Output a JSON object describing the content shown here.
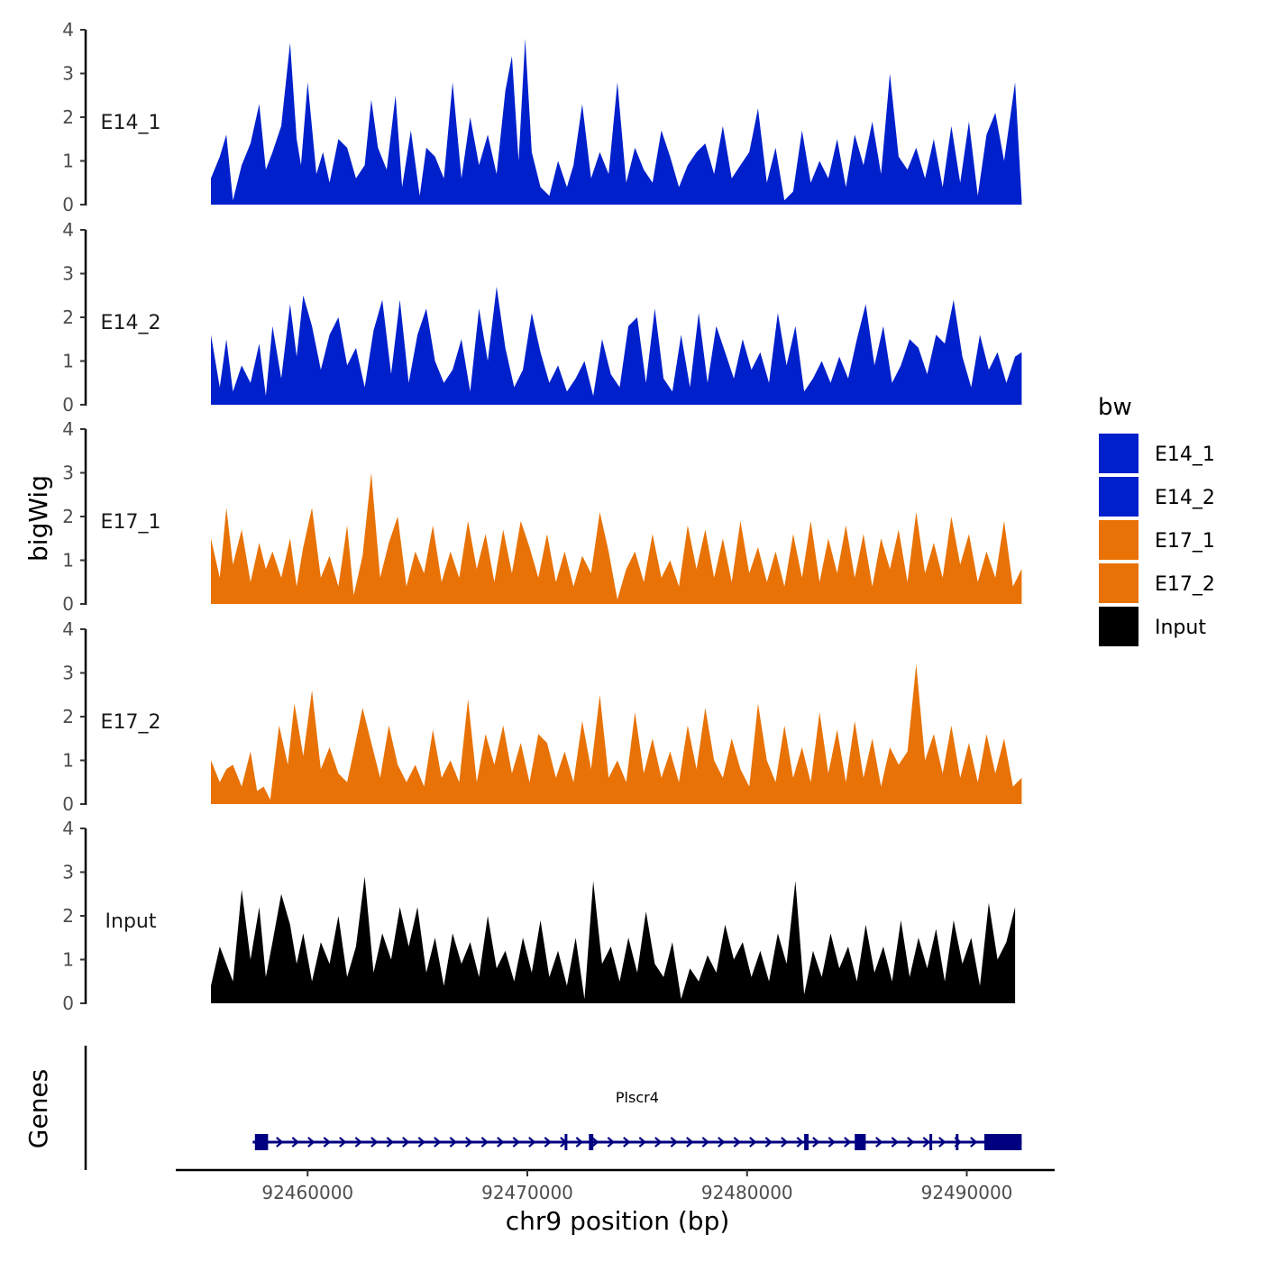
{
  "chart_data": {
    "type": "area",
    "panel_ylabel": "bigWig",
    "genes_label": "Genes",
    "xlabel": "chr9 position (bp)",
    "xlim": [
      92454000,
      92494000
    ],
    "x_ticks": [
      92460000,
      92470000,
      92480000,
      92490000
    ],
    "x_tick_labels": [
      "92460000",
      "92470000",
      "92480000",
      "92490000"
    ],
    "ylim": [
      0,
      4
    ],
    "y_ticks": [
      0,
      1,
      2,
      3,
      4
    ],
    "y_tick_labels": [
      "0",
      "1",
      "2",
      "3",
      "4"
    ],
    "legend": {
      "title": "bw",
      "entries": [
        {
          "label": "E14_1",
          "color": "#0020CC"
        },
        {
          "label": "E14_2",
          "color": "#0020CC"
        },
        {
          "label": "E17_1",
          "color": "#E87205"
        },
        {
          "label": "E17_2",
          "color": "#E87205"
        },
        {
          "label": "Input",
          "color": "#000000"
        }
      ]
    },
    "series": [
      {
        "name": "E14_1",
        "color": "#0020CC",
        "x": [
          92455600,
          92456000,
          92456300,
          92456600,
          92457000,
          92457400,
          92457800,
          92458100,
          92458400,
          92458800,
          92459200,
          92459500,
          92459700,
          92460000,
          92460400,
          92460700,
          92461000,
          92461400,
          92461800,
          92462200,
          92462600,
          92462900,
          92463200,
          92463600,
          92464000,
          92464300,
          92464700,
          92465100,
          92465400,
          92465800,
          92466200,
          92466600,
          92467000,
          92467400,
          92467800,
          92468200,
          92468600,
          92469000,
          92469300,
          92469600,
          92469900,
          92470200,
          92470600,
          92471000,
          92471400,
          92471800,
          92472100,
          92472500,
          92472900,
          92473300,
          92473700,
          92474100,
          92474500,
          92474900,
          92475300,
          92475700,
          92476100,
          92476500,
          92476900,
          92477300,
          92477700,
          92478100,
          92478500,
          92478900,
          92479300,
          92479700,
          92480100,
          92480500,
          92480900,
          92481300,
          92481700,
          92482100,
          92482500,
          92482900,
          92483300,
          92483700,
          92484100,
          92484500,
          92484900,
          92485300,
          92485700,
          92486100,
          92486500,
          92486900,
          92487300,
          92487700,
          92488100,
          92488500,
          92488900,
          92489300,
          92489700,
          92490100,
          92490500,
          92490900,
          92491300,
          92491700,
          92492200,
          92492500
        ],
        "values": [
          0.6,
          1.1,
          1.6,
          0.1,
          0.9,
          1.4,
          2.3,
          0.8,
          1.2,
          1.8,
          3.7,
          1.5,
          0.9,
          2.8,
          0.7,
          1.2,
          0.5,
          1.5,
          1.3,
          0.6,
          0.9,
          2.4,
          1.3,
          0.8,
          2.5,
          0.4,
          1.7,
          0.2,
          1.3,
          1.1,
          0.6,
          2.8,
          0.6,
          2.0,
          0.9,
          1.6,
          0.7,
          2.6,
          3.4,
          1.0,
          3.8,
          1.2,
          0.4,
          0.2,
          1.0,
          0.4,
          0.9,
          2.3,
          0.6,
          1.2,
          0.7,
          2.8,
          0.5,
          1.3,
          0.8,
          0.5,
          1.7,
          1.1,
          0.4,
          0.9,
          1.2,
          1.4,
          0.7,
          1.8,
          0.6,
          0.9,
          1.2,
          2.2,
          0.5,
          1.3,
          0.1,
          0.3,
          1.7,
          0.5,
          1.0,
          0.6,
          1.5,
          0.4,
          1.6,
          0.9,
          1.9,
          0.7,
          3.0,
          1.1,
          0.8,
          1.3,
          0.6,
          1.5,
          0.4,
          1.8,
          0.5,
          1.9,
          0.2,
          1.6,
          2.1,
          1.0,
          2.8,
          0.1
        ]
      },
      {
        "name": "E14_2",
        "color": "#0020CC",
        "x": [
          92455600,
          92456000,
          92456300,
          92456600,
          92457000,
          92457400,
          92457800,
          92458100,
          92458400,
          92458800,
          92459200,
          92459500,
          92459800,
          92460200,
          92460600,
          92461000,
          92461400,
          92461800,
          92462200,
          92462600,
          92463000,
          92463400,
          92463800,
          92464200,
          92464600,
          92465000,
          92465400,
          92465800,
          92466200,
          92466600,
          92467000,
          92467400,
          92467800,
          92468200,
          92468600,
          92469000,
          92469400,
          92469800,
          92470200,
          92470600,
          92471000,
          92471400,
          92471800,
          92472200,
          92472600,
          92473000,
          92473400,
          92473800,
          92474200,
          92474600,
          92475000,
          92475400,
          92475800,
          92476200,
          92476600,
          92477000,
          92477400,
          92477800,
          92478200,
          92478600,
          92479000,
          92479400,
          92479800,
          92480200,
          92480600,
          92481000,
          92481400,
          92481800,
          92482200,
          92482600,
          92483000,
          92483400,
          92483800,
          92484200,
          92484600,
          92485000,
          92485400,
          92485800,
          92486200,
          92486600,
          92487000,
          92487400,
          92487800,
          92488200,
          92488600,
          92489000,
          92489400,
          92489800,
          92490200,
          92490600,
          92491000,
          92491400,
          92491800,
          92492200,
          92492500
        ],
        "values": [
          1.6,
          0.4,
          1.5,
          0.3,
          0.9,
          0.5,
          1.4,
          0.2,
          1.8,
          0.6,
          2.3,
          1.1,
          2.5,
          1.8,
          0.8,
          1.6,
          2.0,
          0.9,
          1.3,
          0.4,
          1.7,
          2.4,
          0.7,
          2.4,
          0.5,
          1.6,
          2.2,
          1.0,
          0.5,
          0.8,
          1.5,
          0.3,
          2.2,
          1.0,
          2.7,
          1.3,
          0.4,
          0.8,
          2.1,
          1.2,
          0.5,
          0.9,
          0.3,
          0.6,
          1.0,
          0.2,
          1.5,
          0.7,
          0.4,
          1.8,
          2.0,
          0.5,
          2.2,
          0.6,
          0.3,
          1.6,
          0.4,
          2.1,
          0.5,
          1.8,
          1.2,
          0.6,
          1.5,
          0.8,
          1.2,
          0.5,
          2.1,
          0.9,
          1.8,
          0.3,
          0.6,
          1.0,
          0.5,
          1.1,
          0.6,
          1.5,
          2.3,
          0.9,
          1.8,
          0.5,
          0.9,
          1.5,
          1.3,
          0.7,
          1.6,
          1.4,
          2.4,
          1.1,
          0.4,
          1.6,
          0.8,
          1.2,
          0.5,
          1.1,
          1.2
        ]
      },
      {
        "name": "E17_1",
        "color": "#E87205",
        "x": [
          92455600,
          92456000,
          92456300,
          92456600,
          92457000,
          92457400,
          92457800,
          92458100,
          92458400,
          92458800,
          92459200,
          92459500,
          92459800,
          92460200,
          92460600,
          92461000,
          92461400,
          92461800,
          92462100,
          92462500,
          92462900,
          92463300,
          92463700,
          92464100,
          92464500,
          92464900,
          92465300,
          92465700,
          92466100,
          92466500,
          92466900,
          92467300,
          92467700,
          92468100,
          92468500,
          92468900,
          92469300,
          92469700,
          92470100,
          92470500,
          92470900,
          92471300,
          92471700,
          92472100,
          92472500,
          92472900,
          92473300,
          92473700,
          92474100,
          92474500,
          92474900,
          92475300,
          92475700,
          92476100,
          92476500,
          92476900,
          92477300,
          92477700,
          92478100,
          92478500,
          92478900,
          92479300,
          92479700,
          92480100,
          92480500,
          92480900,
          92481300,
          92481700,
          92482100,
          92482500,
          92482900,
          92483300,
          92483700,
          92484100,
          92484500,
          92484900,
          92485300,
          92485700,
          92486100,
          92486500,
          92486900,
          92487300,
          92487700,
          92488100,
          92488500,
          92488900,
          92489300,
          92489700,
          92490100,
          92490500,
          92490900,
          92491300,
          92491700,
          92492100,
          92492500
        ],
        "values": [
          1.5,
          0.6,
          2.2,
          0.9,
          1.7,
          0.5,
          1.4,
          0.8,
          1.2,
          0.6,
          1.5,
          0.4,
          1.3,
          2.2,
          0.6,
          1.1,
          0.4,
          1.8,
          0.2,
          1.1,
          3.0,
          0.6,
          1.4,
          2.0,
          0.4,
          1.2,
          0.7,
          1.8,
          0.5,
          1.2,
          0.6,
          1.9,
          0.8,
          1.6,
          0.5,
          1.7,
          0.7,
          1.9,
          1.3,
          0.6,
          1.6,
          0.5,
          1.2,
          0.4,
          1.1,
          0.7,
          2.1,
          1.2,
          0.1,
          0.8,
          1.2,
          0.5,
          1.6,
          0.6,
          1.0,
          0.4,
          1.8,
          0.8,
          1.7,
          0.6,
          1.5,
          0.5,
          1.9,
          0.7,
          1.3,
          0.5,
          1.2,
          0.4,
          1.6,
          0.6,
          1.9,
          0.5,
          1.5,
          0.7,
          1.8,
          0.6,
          1.6,
          0.4,
          1.5,
          0.8,
          1.7,
          0.5,
          2.1,
          0.7,
          1.4,
          0.6,
          2.0,
          0.9,
          1.6,
          0.5,
          1.2,
          0.6,
          1.9,
          0.4,
          0.8
        ]
      },
      {
        "name": "E17_2",
        "color": "#E87205",
        "x": [
          92455600,
          92456000,
          92456300,
          92456600,
          92457000,
          92457400,
          92457700,
          92458000,
          92458300,
          92458700,
          92459100,
          92459400,
          92459800,
          92460200,
          92460600,
          92461000,
          92461400,
          92461800,
          92462100,
          92462500,
          92462900,
          92463300,
          92463700,
          92464100,
          92464500,
          92464900,
          92465300,
          92465700,
          92466100,
          92466500,
          92466900,
          92467300,
          92467700,
          92468100,
          92468500,
          92468900,
          92469300,
          92469700,
          92470100,
          92470500,
          92470900,
          92471300,
          92471700,
          92472100,
          92472500,
          92472900,
          92473300,
          92473700,
          92474100,
          92474500,
          92474900,
          92475300,
          92475700,
          92476100,
          92476500,
          92476900,
          92477300,
          92477700,
          92478100,
          92478500,
          92478900,
          92479300,
          92479700,
          92480100,
          92480500,
          92480900,
          92481300,
          92481700,
          92482100,
          92482500,
          92482900,
          92483300,
          92483700,
          92484100,
          92484500,
          92484900,
          92485300,
          92485700,
          92486100,
          92486500,
          92486900,
          92487300,
          92487700,
          92488100,
          92488500,
          92488900,
          92489300,
          92489700,
          92490100,
          92490500,
          92490900,
          92491300,
          92491700,
          92492100,
          92492500
        ],
        "values": [
          1.0,
          0.5,
          0.8,
          0.9,
          0.4,
          1.2,
          0.3,
          0.4,
          0.1,
          1.8,
          0.9,
          2.3,
          1.1,
          2.6,
          0.8,
          1.3,
          0.7,
          0.5,
          1.2,
          2.2,
          1.4,
          0.6,
          1.8,
          0.9,
          0.5,
          0.9,
          0.4,
          1.7,
          0.6,
          1.0,
          0.5,
          2.4,
          0.5,
          1.6,
          0.9,
          1.8,
          0.7,
          1.4,
          0.5,
          1.6,
          1.4,
          0.6,
          1.2,
          0.5,
          1.9,
          0.8,
          2.5,
          0.6,
          1.0,
          0.5,
          2.1,
          0.7,
          1.5,
          0.6,
          1.2,
          0.5,
          1.8,
          0.8,
          2.2,
          1.0,
          0.6,
          1.5,
          0.8,
          0.4,
          2.3,
          1.0,
          0.5,
          1.8,
          0.6,
          1.3,
          0.5,
          2.1,
          0.7,
          1.7,
          0.5,
          1.9,
          0.6,
          1.5,
          0.4,
          1.3,
          0.9,
          1.2,
          3.2,
          1.0,
          1.6,
          0.7,
          1.8,
          0.6,
          1.4,
          0.5,
          1.6,
          0.7,
          1.5,
          0.4,
          0.6
        ]
      },
      {
        "name": "Input",
        "color": "#000000",
        "x": [
          92455600,
          92456000,
          92456300,
          92456600,
          92457000,
          92457400,
          92457800,
          92458100,
          92458400,
          92458800,
          92459200,
          92459500,
          92459800,
          92460200,
          92460600,
          92461000,
          92461400,
          92461800,
          92462200,
          92462600,
          92463000,
          92463400,
          92463800,
          92464200,
          92464600,
          92465000,
          92465400,
          92465800,
          92466200,
          92466600,
          92467000,
          92467400,
          92467800,
          92468200,
          92468600,
          92469000,
          92469400,
          92469800,
          92470200,
          92470600,
          92471000,
          92471400,
          92471800,
          92472200,
          92472600,
          92473000,
          92473400,
          92473800,
          92474200,
          92474600,
          92475000,
          92475400,
          92475800,
          92476200,
          92476600,
          92477000,
          92477400,
          92477800,
          92478200,
          92478600,
          92479000,
          92479400,
          92479800,
          92480200,
          92480600,
          92481000,
          92481400,
          92481800,
          92482200,
          92482600,
          92483000,
          92483400,
          92483800,
          92484200,
          92484600,
          92485000,
          92485400,
          92485800,
          92486200,
          92486600,
          92487000,
          92487400,
          92487800,
          92488200,
          92488600,
          92489000,
          92489400,
          92489800,
          92490200,
          92490600,
          92491000,
          92491400,
          92491800,
          92492200
        ],
        "values": [
          0.4,
          1.3,
          0.9,
          0.5,
          2.6,
          1.0,
          2.2,
          0.6,
          1.4,
          2.5,
          1.8,
          0.9,
          1.6,
          0.5,
          1.4,
          0.9,
          2.0,
          0.6,
          1.3,
          2.9,
          0.7,
          1.6,
          1.0,
          2.2,
          1.3,
          2.2,
          0.7,
          1.5,
          0.4,
          1.6,
          0.9,
          1.4,
          0.6,
          2.0,
          0.8,
          1.2,
          0.5,
          1.5,
          0.7,
          1.9,
          0.6,
          1.2,
          0.4,
          1.5,
          0.1,
          2.8,
          0.9,
          1.3,
          0.5,
          1.5,
          0.7,
          2.1,
          0.9,
          0.6,
          1.4,
          0.1,
          0.8,
          0.5,
          1.1,
          0.7,
          1.8,
          1.0,
          1.4,
          0.6,
          1.2,
          0.5,
          1.6,
          0.9,
          2.8,
          0.2,
          1.2,
          0.6,
          1.6,
          0.8,
          1.3,
          0.5,
          1.8,
          0.7,
          1.3,
          0.5,
          1.9,
          0.6,
          1.5,
          0.8,
          1.7,
          0.5,
          1.9,
          0.9,
          1.5,
          0.4,
          2.3,
          1.0,
          1.4,
          2.2
        ]
      }
    ],
    "gene": {
      "name": "Plscr4",
      "start": 92457500,
      "end": 92492500,
      "strand": "+",
      "color": "#000080",
      "exons": [
        [
          92457600,
          92458200
        ],
        [
          92471700,
          92471800
        ],
        [
          92472800,
          92473000
        ],
        [
          92482600,
          92482800
        ],
        [
          92484900,
          92485400
        ],
        [
          92488300,
          92488400
        ],
        [
          92489500,
          92489600
        ],
        [
          92490800,
          92492500
        ]
      ]
    }
  }
}
